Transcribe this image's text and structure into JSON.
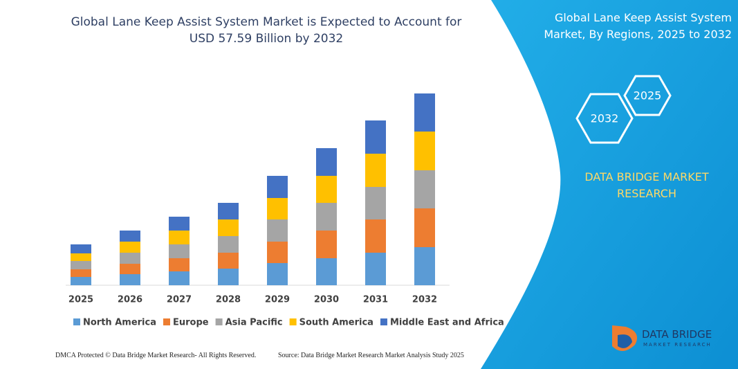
{
  "header": {
    "title": "Global Lane Keep Assist System Market is Expected to Account for USD 57.59 Billion by 2032",
    "side_title": "Global Lane Keep Assist System Market, By Regions, 2025 to 2032"
  },
  "badges": [
    "2032",
    "2025"
  ],
  "brand": "DATA BRIDGE MARKET RESEARCH",
  "chart_data": {
    "type": "bar",
    "stacked": true,
    "categories": [
      "2025",
      "2026",
      "2027",
      "2028",
      "2029",
      "2030",
      "2031",
      "2032"
    ],
    "series": [
      {
        "name": "North America",
        "color": "#5b9bd5",
        "values": [
          12,
          16,
          20,
          24,
          32,
          39,
          47,
          55
        ]
      },
      {
        "name": "Europe",
        "color": "#ed7d31",
        "values": [
          11,
          15,
          19,
          23,
          31,
          40,
          48,
          56
        ]
      },
      {
        "name": "Asia Pacific",
        "color": "#a5a5a5",
        "values": [
          12,
          16,
          20,
          24,
          32,
          40,
          47,
          55
        ]
      },
      {
        "name": "South America",
        "color": "#ffc000",
        "values": [
          11,
          16,
          20,
          24,
          31,
          39,
          48,
          56
        ]
      },
      {
        "name": "Middle East and Africa",
        "color": "#4472c4",
        "values": [
          13,
          16,
          20,
          24,
          32,
          40,
          48,
          55
        ]
      }
    ]
  },
  "footer": {
    "left": "DMCA Protected © Data Bridge Market Research-  All Rights Reserved.",
    "right": "Source: Data Bridge Market Research  Market Analysis Study 2025"
  },
  "logo": {
    "name": "DATA BRIDGE",
    "tagline": "MARKET RESEARCH"
  }
}
